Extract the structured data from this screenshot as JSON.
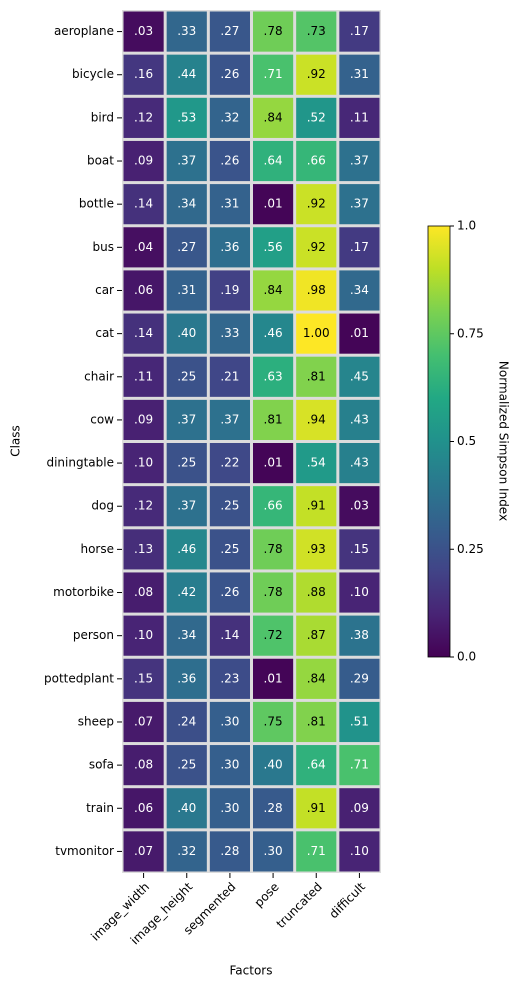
{
  "chart_data": {
    "type": "heatmap",
    "x_label": "Factors",
    "y_label": "Class",
    "x": [
      "image_width",
      "image_height",
      "segmented",
      "pose",
      "truncated",
      "difficult"
    ],
    "y": [
      "aeroplane",
      "bicycle",
      "bird",
      "boat",
      "bottle",
      "bus",
      "car",
      "cat",
      "chair",
      "cow",
      "diningtable",
      "dog",
      "horse",
      "motorbike",
      "person",
      "pottedplant",
      "sheep",
      "sofa",
      "train",
      "tvmonitor"
    ],
    "values": [
      [
        0.03,
        0.33,
        0.27,
        0.78,
        0.73,
        0.17
      ],
      [
        0.16,
        0.44,
        0.26,
        0.71,
        0.92,
        0.31
      ],
      [
        0.12,
        0.53,
        0.32,
        0.84,
        0.52,
        0.11
      ],
      [
        0.09,
        0.37,
        0.26,
        0.64,
        0.66,
        0.37
      ],
      [
        0.14,
        0.34,
        0.31,
        0.01,
        0.92,
        0.37
      ],
      [
        0.04,
        0.27,
        0.36,
        0.56,
        0.92,
        0.17
      ],
      [
        0.06,
        0.31,
        0.19,
        0.84,
        0.98,
        0.34
      ],
      [
        0.14,
        0.4,
        0.33,
        0.46,
        1.0,
        0.01
      ],
      [
        0.11,
        0.25,
        0.21,
        0.63,
        0.81,
        0.45
      ],
      [
        0.09,
        0.37,
        0.37,
        0.81,
        0.94,
        0.43
      ],
      [
        0.1,
        0.25,
        0.22,
        0.01,
        0.54,
        0.43
      ],
      [
        0.12,
        0.37,
        0.25,
        0.66,
        0.91,
        0.03
      ],
      [
        0.13,
        0.46,
        0.25,
        0.78,
        0.93,
        0.15
      ],
      [
        0.08,
        0.42,
        0.26,
        0.78,
        0.88,
        0.1
      ],
      [
        0.1,
        0.34,
        0.14,
        0.72,
        0.87,
        0.38
      ],
      [
        0.15,
        0.36,
        0.23,
        0.01,
        0.84,
        0.29
      ],
      [
        0.07,
        0.24,
        0.3,
        0.75,
        0.81,
        0.51
      ],
      [
        0.08,
        0.25,
        0.3,
        0.4,
        0.64,
        0.71
      ],
      [
        0.06,
        0.4,
        0.3,
        0.28,
        0.91,
        0.09
      ],
      [
        0.07,
        0.32,
        0.28,
        0.3,
        0.71,
        0.1
      ]
    ],
    "value_labels": [
      [
        ".03",
        ".33",
        ".27",
        ".78",
        ".73",
        ".17"
      ],
      [
        ".16",
        ".44",
        ".26",
        ".71",
        ".92",
        ".31"
      ],
      [
        ".12",
        ".53",
        ".32",
        ".84",
        ".52",
        ".11"
      ],
      [
        ".09",
        ".37",
        ".26",
        ".64",
        ".66",
        ".37"
      ],
      [
        ".14",
        ".34",
        ".31",
        ".01",
        ".92",
        ".37"
      ],
      [
        ".04",
        ".27",
        ".36",
        ".56",
        ".92",
        ".17"
      ],
      [
        ".06",
        ".31",
        ".19",
        ".84",
        ".98",
        ".34"
      ],
      [
        ".14",
        ".40",
        ".33",
        ".46",
        "1.00",
        ".01"
      ],
      [
        ".11",
        ".25",
        ".21",
        ".63",
        ".81",
        ".45"
      ],
      [
        ".09",
        ".37",
        ".37",
        ".81",
        ".94",
        ".43"
      ],
      [
        ".10",
        ".25",
        ".22",
        ".01",
        ".54",
        ".43"
      ],
      [
        ".12",
        ".37",
        ".25",
        ".66",
        ".91",
        ".03"
      ],
      [
        ".13",
        ".46",
        ".25",
        ".78",
        ".93",
        ".15"
      ],
      [
        ".08",
        ".42",
        ".26",
        ".78",
        ".88",
        ".10"
      ],
      [
        ".10",
        ".34",
        ".14",
        ".72",
        ".87",
        ".38"
      ],
      [
        ".15",
        ".36",
        ".23",
        ".01",
        ".84",
        ".29"
      ],
      [
        ".07",
        ".24",
        ".30",
        ".75",
        ".81",
        ".51"
      ],
      [
        ".08",
        ".25",
        ".30",
        ".40",
        ".64",
        ".71"
      ],
      [
        ".06",
        ".40",
        ".30",
        ".28",
        ".91",
        ".09"
      ],
      [
        ".07",
        ".32",
        ".28",
        ".30",
        ".71",
        ".10"
      ]
    ],
    "colormap": "viridis",
    "colorbar": {
      "label": "Normalized Simpson Index",
      "lim": [
        0,
        1
      ],
      "ticks": [
        {
          "value": 0,
          "label": "0.0"
        },
        0.25,
        0.5,
        0.75,
        {
          "value": 1,
          "label": "1.0"
        }
      ]
    }
  }
}
